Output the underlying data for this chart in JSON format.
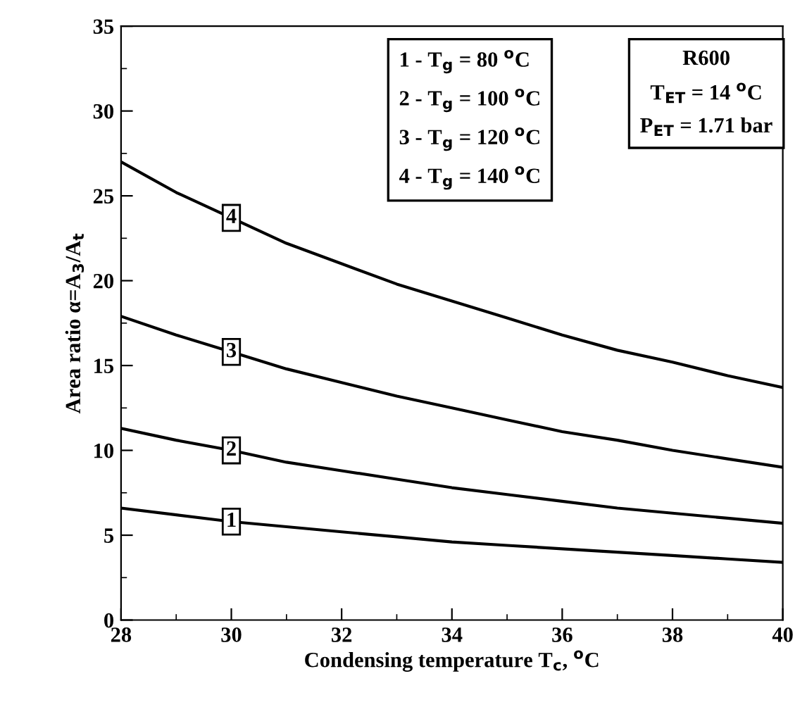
{
  "chart_data": {
    "type": "line",
    "xlabel": "Condensing temperature T$_{c}$, $^{o}$C",
    "ylabel": "Area ratio α=A$_{3}$/A$_{t}$",
    "x": [
      28,
      29,
      30,
      31,
      32,
      33,
      34,
      35,
      36,
      37,
      38,
      39,
      40
    ],
    "series": [
      {
        "name": "1",
        "color": "#000000",
        "values": [
          6.6,
          6.2,
          5.8,
          5.5,
          5.2,
          4.9,
          4.6,
          4.4,
          4.2,
          4.0,
          3.8,
          3.6,
          3.4
        ]
      },
      {
        "name": "2",
        "color": "#000000",
        "values": [
          11.3,
          10.6,
          10.0,
          9.3,
          8.8,
          8.3,
          7.8,
          7.4,
          7.0,
          6.6,
          6.3,
          6.0,
          5.7
        ]
      },
      {
        "name": "3",
        "color": "#000000",
        "values": [
          17.9,
          16.8,
          15.8,
          14.8,
          14.0,
          13.2,
          12.5,
          11.8,
          11.1,
          10.6,
          10.0,
          9.5,
          9.0
        ]
      },
      {
        "name": "4",
        "color": "#000000",
        "values": [
          27.0,
          25.2,
          23.7,
          22.2,
          21.0,
          19.8,
          18.8,
          17.8,
          16.8,
          15.9,
          15.2,
          14.4,
          13.7
        ]
      }
    ],
    "annotations": [
      "1 - T$_{g}$ = 80 $^{o}$C\n2 - T$_{g}$ = 100 $^{o}$C\n3 - T$_{g}$ = 120 $^{o}$C\n4 - T$_{g}$ = 140 $^{o}$C",
      "R600\nT$_{ET}$ = 14 $^{o}$C\nP$_{ET}$ = 1.71 bar"
    ],
    "xlim": [
      28,
      40
    ],
    "xticks": [
      28,
      30,
      32,
      34,
      36,
      38,
      40
    ],
    "ylim": [
      0,
      35
    ],
    "yticks": [
      0,
      5,
      10,
      15,
      20,
      25,
      30,
      35
    ],
    "grid": false,
    "legend": false,
    "marker": "none",
    "line_style": "solid"
  }
}
